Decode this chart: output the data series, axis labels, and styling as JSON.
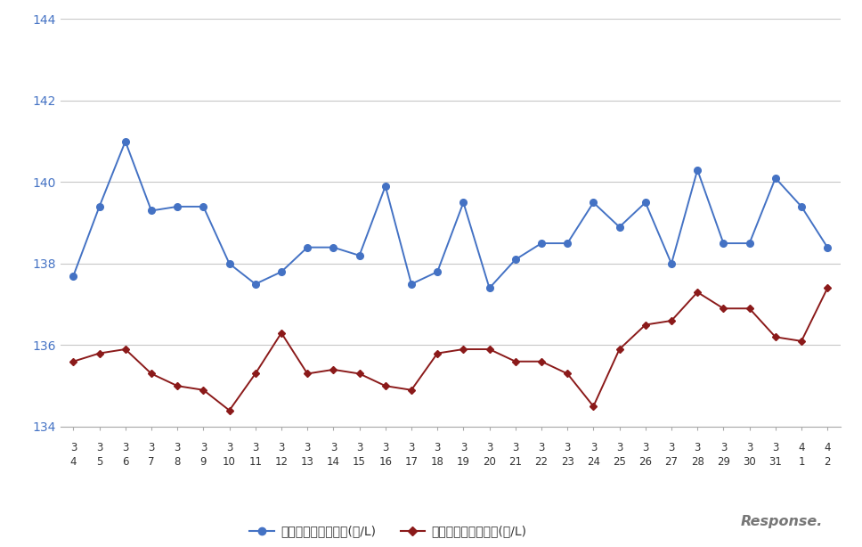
{
  "x_labels_row1": [
    "3",
    "3",
    "3",
    "3",
    "3",
    "3",
    "3",
    "3",
    "3",
    "3",
    "3",
    "3",
    "3",
    "3",
    "3",
    "3",
    "3",
    "3",
    "3",
    "3",
    "3",
    "3",
    "3",
    "3",
    "3",
    "3",
    "3",
    "3",
    "4",
    "4"
  ],
  "x_labels_row2": [
    "4",
    "5",
    "6",
    "7",
    "8",
    "9",
    "10",
    "11",
    "12",
    "13",
    "14",
    "15",
    "16",
    "17",
    "18",
    "19",
    "20",
    "21",
    "22",
    "23",
    "24",
    "25",
    "26",
    "27",
    "28",
    "29",
    "30",
    "31",
    "1",
    "2"
  ],
  "blue_values": [
    137.7,
    139.4,
    141.0,
    139.3,
    139.4,
    139.4,
    138.0,
    137.5,
    137.8,
    138.4,
    138.4,
    138.2,
    139.9,
    137.5,
    137.8,
    139.5,
    137.4,
    138.1,
    138.5,
    138.5,
    139.5,
    138.9,
    139.5,
    138.0,
    140.3,
    138.5,
    138.5,
    140.1,
    139.4,
    138.4
  ],
  "red_values": [
    135.6,
    135.8,
    135.9,
    135.3,
    135.0,
    134.9,
    134.4,
    135.3,
    136.3,
    135.3,
    135.4,
    135.3,
    135.0,
    134.9,
    135.8,
    135.9,
    135.9,
    135.6,
    135.6,
    135.3,
    134.5,
    135.9,
    136.5,
    136.6,
    137.3,
    136.9,
    136.9,
    136.2,
    136.1,
    137.4
  ],
  "blue_color": "#4472c4",
  "red_color": "#8b1a1a",
  "background_color": "#ffffff",
  "grid_color": "#c8c8c8",
  "ylim_min": 134,
  "ylim_max": 144,
  "yticks": [
    134,
    136,
    138,
    140,
    142,
    144
  ],
  "legend_blue": "レギュラー看板価格(円/L)",
  "legend_red": "レギュラー実売価格(円/L)",
  "blue_tick_color": "#4472c4",
  "axis_color": "#aaaaaa",
  "response_text": "Response.",
  "label_color": "#333333"
}
